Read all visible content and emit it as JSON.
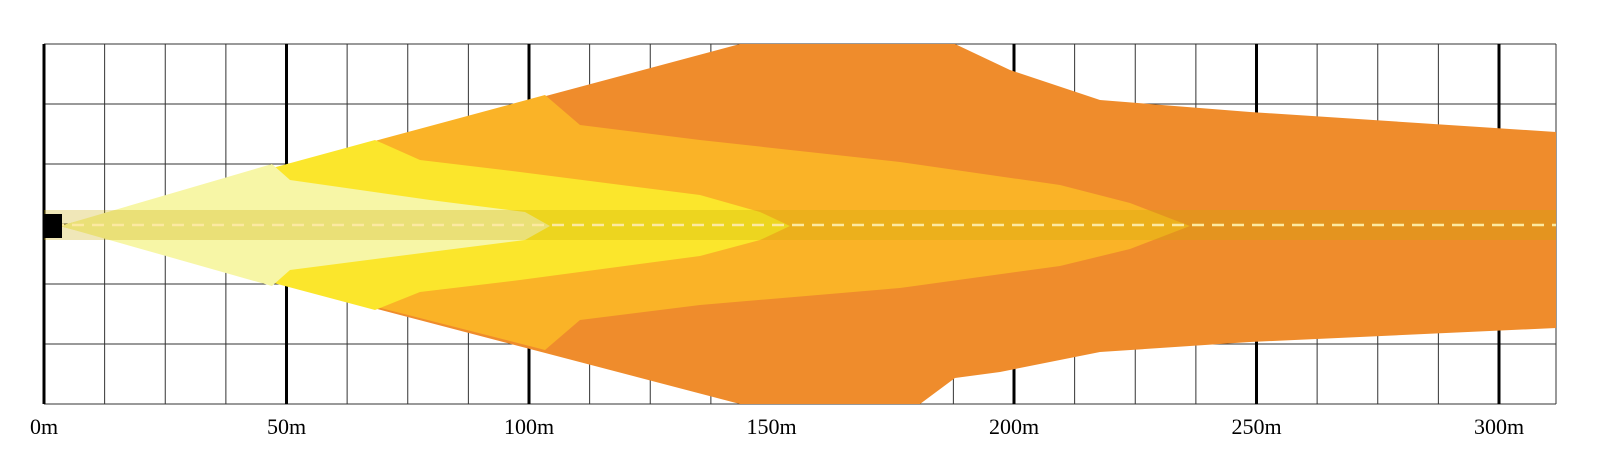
{
  "diagram": {
    "x_axis": {
      "min": 0,
      "max": 313,
      "major_step": 50,
      "minor_step": 12.5,
      "tick_labels": [
        "0m",
        "50m",
        "100m",
        "150m",
        "200m",
        "250m",
        "300m"
      ]
    },
    "grid": {
      "shown": true,
      "horizontal_lines": 6
    },
    "center_line": {
      "style": "dashed",
      "color": "#fce9a0"
    },
    "colors": {
      "zone_far": "#ef8c2c",
      "zone_mid": "#fab327",
      "zone_near": "#fbe62c",
      "zone_close": "#f7f6a6",
      "center_band": "#c8a800",
      "lamp": "#000000",
      "grid_minor": "#333333",
      "grid_major": "#000000"
    }
  }
}
